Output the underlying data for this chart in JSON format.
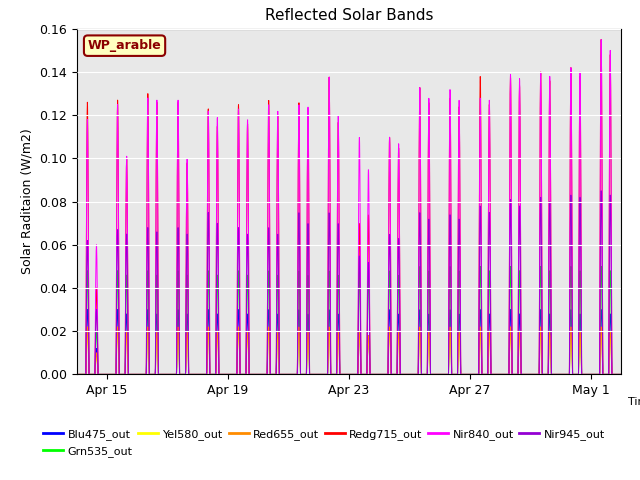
{
  "title": "Reflected Solar Bands",
  "ylabel": "Solar Raditaion (W/m2)",
  "ylim": [
    0,
    0.16
  ],
  "yticks": [
    0.0,
    0.02,
    0.04,
    0.06,
    0.08,
    0.1,
    0.12,
    0.14,
    0.16
  ],
  "annotation_label": "WP_arable",
  "annotation_color": "#8B0000",
  "annotation_bg": "#FFFFC0",
  "background_color": "#E8E8E8",
  "series": [
    {
      "name": "Blu475_out",
      "color": "#0000FF"
    },
    {
      "name": "Grn535_out",
      "color": "#00FF00"
    },
    {
      "name": "Yel580_out",
      "color": "#FFFF00"
    },
    {
      "name": "Red655_out",
      "color": "#FF8C00"
    },
    {
      "name": "Redg715_out",
      "color": "#FF0000"
    },
    {
      "name": "Nir840_out",
      "color": "#FF00FF"
    },
    {
      "name": "Nir945_out",
      "color": "#9400D3"
    }
  ],
  "x_tick_labels": [
    "Apr 15",
    "Apr 19",
    "Apr 23",
    "Apr 27",
    "May 1"
  ],
  "tick_positions": [
    1,
    5,
    9,
    13,
    17
  ],
  "n_days": 18,
  "nir840_peaks": [
    0.118,
    0.125,
    0.128,
    0.127,
    0.122,
    0.123,
    0.125,
    0.125,
    0.138,
    0.11,
    0.11,
    0.133,
    0.132,
    0.128,
    0.139,
    0.14,
    0.142,
    0.155
  ],
  "nir840_peaks2": [
    0.06,
    0.101,
    0.127,
    0.1,
    0.119,
    0.118,
    0.122,
    0.124,
    0.12,
    0.095,
    0.107,
    0.128,
    0.127,
    0.127,
    0.137,
    0.138,
    0.14,
    0.15
  ],
  "redg715_peaks": [
    0.126,
    0.127,
    0.13,
    0.126,
    0.123,
    0.125,
    0.127,
    0.126,
    0.138,
    0.07,
    0.11,
    0.133,
    0.128,
    0.138,
    0.138,
    0.14,
    0.142,
    0.155
  ],
  "redg715_peaks2": [
    0.04,
    0.1,
    0.126,
    0.098,
    0.115,
    0.116,
    0.12,
    0.12,
    0.117,
    0.074,
    0.105,
    0.126,
    0.124,
    0.125,
    0.134,
    0.136,
    0.138,
    0.148
  ],
  "nir945_peaks": [
    0.062,
    0.067,
    0.068,
    0.068,
    0.075,
    0.068,
    0.068,
    0.075,
    0.075,
    0.055,
    0.065,
    0.075,
    0.074,
    0.078,
    0.081,
    0.082,
    0.083,
    0.085
  ],
  "nir945_peaks2": [
    0.03,
    0.065,
    0.066,
    0.065,
    0.07,
    0.065,
    0.065,
    0.07,
    0.07,
    0.052,
    0.063,
    0.072,
    0.072,
    0.075,
    0.078,
    0.08,
    0.082,
    0.083
  ],
  "grn535_peaks": [
    0.048,
    0.048,
    0.048,
    0.048,
    0.048,
    0.048,
    0.048,
    0.048,
    0.048,
    0.048,
    0.048,
    0.05,
    0.05,
    0.05,
    0.05,
    0.05,
    0.05,
    0.05
  ],
  "grn535_peaks2": [
    0.02,
    0.046,
    0.046,
    0.046,
    0.046,
    0.046,
    0.046,
    0.046,
    0.046,
    0.046,
    0.046,
    0.048,
    0.048,
    0.048,
    0.048,
    0.048,
    0.048,
    0.048
  ],
  "blu475_peaks": [
    0.03,
    0.03,
    0.03,
    0.03,
    0.03,
    0.03,
    0.03,
    0.03,
    0.03,
    0.02,
    0.03,
    0.03,
    0.03,
    0.03,
    0.03,
    0.03,
    0.03,
    0.03
  ],
  "blu475_peaks2": [
    0.012,
    0.028,
    0.028,
    0.028,
    0.028,
    0.028,
    0.028,
    0.028,
    0.028,
    0.018,
    0.028,
    0.028,
    0.028,
    0.028,
    0.028,
    0.028,
    0.028,
    0.028
  ],
  "yel580_peaks": [
    0.018,
    0.02,
    0.02,
    0.02,
    0.02,
    0.02,
    0.02,
    0.02,
    0.02,
    0.018,
    0.02,
    0.02,
    0.02,
    0.02,
    0.02,
    0.02,
    0.02,
    0.02
  ],
  "yel580_peaks2": [
    0.008,
    0.018,
    0.018,
    0.018,
    0.018,
    0.018,
    0.018,
    0.018,
    0.018,
    0.016,
    0.018,
    0.018,
    0.018,
    0.018,
    0.018,
    0.018,
    0.018,
    0.018
  ],
  "red655_peaks": [
    0.022,
    0.022,
    0.022,
    0.022,
    0.022,
    0.022,
    0.022,
    0.022,
    0.022,
    0.02,
    0.022,
    0.022,
    0.022,
    0.022,
    0.022,
    0.022,
    0.022,
    0.022
  ],
  "red655_peaks2": [
    0.01,
    0.02,
    0.02,
    0.02,
    0.02,
    0.02,
    0.02,
    0.02,
    0.02,
    0.018,
    0.02,
    0.02,
    0.02,
    0.02,
    0.02,
    0.02,
    0.02,
    0.02
  ]
}
